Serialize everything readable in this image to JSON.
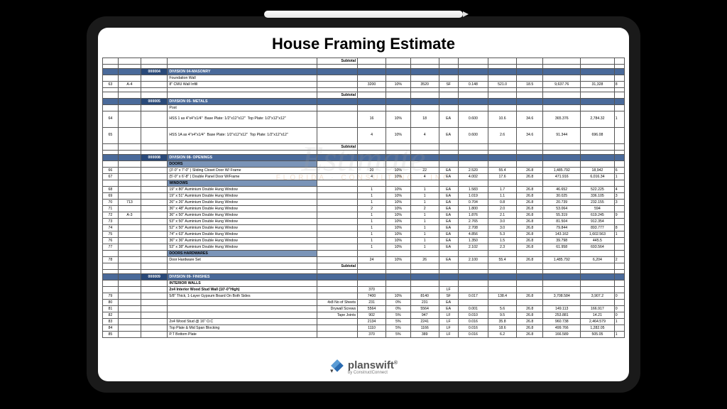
{
  "title": "House Framing Estimate",
  "watermark": {
    "main": "Estimate",
    "sub": "FLORIDA · CONSULTING · INC"
  },
  "logo": {
    "name": "planswift",
    "sup": "®",
    "by": "by ConstructConnect"
  },
  "colors": {
    "page_bg": "#000000",
    "tablet_bg": "#1a1a1a",
    "screen_bg": "#ffffff",
    "header_bg": "#4a6a9a",
    "header_code_bg": "#2a4a7a",
    "category_bg": "#7a94b8",
    "text": "#000000",
    "border": "#555555"
  },
  "columns": [
    "num",
    "ref",
    "code",
    "desc",
    "sub",
    "q",
    "p",
    "q2",
    "u",
    "r1",
    "r2",
    "r3",
    "r4",
    "r5",
    "r6"
  ],
  "rows": [
    {
      "t": "sub",
      "sub": "Subtotal"
    },
    {
      "t": "blank"
    },
    {
      "t": "hdr",
      "code": "000004",
      "desc": "DIVISION 04-MASONRY"
    },
    {
      "t": "row",
      "desc": "Foundation Wall"
    },
    {
      "t": "row",
      "num": "63",
      "ref": "A-4",
      "desc": "8\" CMU Wall Infill",
      "q": "3200",
      "p": "10%",
      "q2": "3520",
      "u": "SF",
      "r1": "0.148",
      "r2": "521.0",
      "r3": "18.5",
      "r4": "9,637.76",
      "r5": "31,328",
      "r6": "8"
    },
    {
      "t": "blank"
    },
    {
      "t": "sub",
      "sub": "Subtotal"
    },
    {
      "t": "hdr",
      "code": "000005",
      "desc": "DIVISION 05- METALS"
    },
    {
      "t": "row",
      "desc": "Post"
    },
    {
      "t": "row",
      "num": "64",
      "desc": "HSS 1  as 4\"x4\"x1/4\"  Base Plate: 1/2\"x12\"x12\"  Top Plate: 1/2\"x12\"x12\"",
      "q": "16",
      "p": "10%",
      "q2": "18",
      "u": "EA",
      "r1": "0.600",
      "r2": "10.6",
      "r3": "34.6",
      "r4": "365.376",
      "r5": "2,784.32",
      "r6": "1"
    },
    {
      "t": "row",
      "num": "65",
      "desc": "HSS 1A  as 4\"x4\"x1/4\"  Base Plate: 1/2\"x12\"x12\"  Top Plate: 1/2\"x12\"x12\"",
      "q": "4",
      "p": "10%",
      "q2": "4",
      "u": "EA",
      "r1": "0.600",
      "r2": "2.6",
      "r3": "34.6",
      "r4": "91.344",
      "r5": "696.08",
      "r6": ""
    },
    {
      "t": "sub",
      "sub": "Subtotal"
    },
    {
      "t": "blank"
    },
    {
      "t": "hdr",
      "code": "000008",
      "desc": "DIVISION 08- OPENINGS"
    },
    {
      "t": "cat",
      "desc": "DOORS"
    },
    {
      "t": "row",
      "num": "66",
      "desc": "(3'-0\" x 7'-0\" ) Sliding Closet Door W/ Frame",
      "q": "20",
      "p": "10%",
      "q2": "22",
      "u": "EA",
      "r1": "2.520",
      "r2": "55.4",
      "r3": "26.8",
      "r4": "1,485.792",
      "r5": "18,942",
      "r6": "6"
    },
    {
      "t": "row",
      "num": "67",
      "desc": "(5'-0\" x 6'-8\" ) Double Panel Door W/Frame",
      "q": "4",
      "p": "10%",
      "q2": "4",
      "u": "EA",
      "r1": "4.002",
      "r2": "17.6",
      "r3": "26.8",
      "r4": "471.916",
      "r5": "6,016.34",
      "r6": "1"
    },
    {
      "t": "cat",
      "desc": "WINDOWS"
    },
    {
      "t": "row",
      "num": "68",
      "desc": "19\" x 80\" Auminium Double Hung Window",
      "q": "1",
      "p": "10%",
      "q2": "1",
      "u": "EA",
      "r1": "1.583",
      "r2": "1.7",
      "r3": "26.8",
      "r4": "46.652",
      "r5": "522.225",
      "r6": "4"
    },
    {
      "t": "row",
      "num": "69",
      "desc": "19\" x 51\" Auminium Double Hung Window",
      "q": "1",
      "p": "10%",
      "q2": "1",
      "u": "EA",
      "r1": "1.019",
      "r2": "1.1",
      "r3": "26.8",
      "r4": "30.025",
      "r5": "336.105",
      "r6": "3"
    },
    {
      "t": "row",
      "num": "70",
      "ref": "713",
      "desc": "26\" x 26\" Auminium Double Hung Window",
      "q": "1",
      "p": "10%",
      "q2": "1",
      "u": "EA",
      "r1": "0.704",
      "r2": "0.8",
      "r3": "26.8",
      "r4": "20.739",
      "r5": "232.155",
      "r6": "3"
    },
    {
      "t": "row",
      "num": "71",
      "desc": "36\" x 48\" Auminium Double Hung Window",
      "q": "2",
      "p": "10%",
      "q2": "2",
      "u": "EA",
      "r1": "1.800",
      "r2": "2.0",
      "r3": "26.8",
      "r4": "53.064",
      "r5": "594",
      "r6": ""
    },
    {
      "t": "row",
      "num": "72",
      "ref": "A-3",
      "desc": "36\" x 50\" Auminium Double Hung Window",
      "q": "1",
      "p": "10%",
      "q2": "1",
      "u": "EA",
      "r1": "1.876",
      "r2": "2.1",
      "r3": "26.8",
      "r4": "55.319",
      "r5": "619.245",
      "r6": "9"
    },
    {
      "t": "row",
      "num": "73",
      "desc": "53\" x 50\" Auminium Double Hung Window",
      "q": "1",
      "p": "10%",
      "q2": "1",
      "u": "EA",
      "r1": "2.765",
      "r2": "3.0",
      "r3": "26.8",
      "r4": "81.504",
      "r5": "912.354",
      "r6": ""
    },
    {
      "t": "row",
      "num": "74",
      "desc": "52\" x 50\" Auminium Double Hung Window",
      "q": "1",
      "p": "10%",
      "q2": "1",
      "u": "EA",
      "r1": "2.708",
      "r2": "3.0",
      "r3": "26.8",
      "r4": "79.844",
      "r5": "893.777",
      "r6": "8"
    },
    {
      "t": "row",
      "num": "75",
      "desc": "74\" x 63\" Auminium Double Hung Window",
      "q": "1",
      "p": "10%",
      "q2": "1",
      "u": "EA",
      "r1": "4.856",
      "r2": "5.3",
      "r3": "26.8",
      "r4": "143.162",
      "r5": "1,602.563",
      "r6": "1"
    },
    {
      "t": "row",
      "num": "76",
      "desc": "36\" x 36\" Auminium Double Hung Window",
      "q": "1",
      "p": "10%",
      "q2": "1",
      "u": "EA",
      "r1": "1.350",
      "r2": "1.5",
      "r3": "26.8",
      "r4": "39.798",
      "r5": "445.5",
      "r6": ""
    },
    {
      "t": "row",
      "num": "77",
      "desc": "53\" x 38\" Auminium Double Hung Window",
      "q": "1",
      "p": "10%",
      "q2": "1",
      "u": "EA",
      "r1": "2.102",
      "r2": "2.3",
      "r3": "26.8",
      "r4": "61.958",
      "r5": "693.564",
      "r6": ""
    },
    {
      "t": "cat",
      "desc": "DOORS HARDWARES"
    },
    {
      "t": "row",
      "num": "78",
      "desc": "Door Hardware Set",
      "q": "24",
      "p": "10%",
      "q2": "26",
      "u": "EA",
      "r1": "2.100",
      "r2": "55.4",
      "r3": "26.8",
      "r4": "1,485.792",
      "r5": "6,204",
      "r6": "2"
    },
    {
      "t": "sub",
      "sub": "Subtotal"
    },
    {
      "t": "blank"
    },
    {
      "t": "hdr",
      "code": "000009",
      "desc": "DIVISION 09- FINISHES"
    },
    {
      "t": "row",
      "desc": "INTERIOR WALLS",
      "bold": true
    },
    {
      "t": "row",
      "desc": "2x4 Interior Wood Stud Wall  (10'-0\"High)",
      "q": "370",
      "u": "LF",
      "bold": true
    },
    {
      "t": "row",
      "num": "79",
      "desc": "5/8\" Thick, 1-Layer Gypsum Board On Both Sides",
      "q": "7400",
      "p": "10%",
      "q2": "8140",
      "u": "SF",
      "r1": "0.017",
      "r2": "138.4",
      "r3": "26.8",
      "r4": "3,708.584",
      "r5": "3,907.2",
      "r6": "0"
    },
    {
      "t": "row",
      "num": "80",
      "desc": "",
      "sub": "4x8 No of  Sheets",
      "q": "231",
      "p": "0%",
      "q2": "231",
      "u": "EA"
    },
    {
      "t": "row",
      "num": "81",
      "desc": "",
      "sub": "Drywall Screws",
      "q": "5564",
      "p": "0%",
      "q2": "5564",
      "u": "EA",
      "r1": "0.001",
      "r2": "5.6",
      "r3": "26.8",
      "r4": "149.113",
      "r5": "166.917",
      "r6": "0"
    },
    {
      "t": "row",
      "num": "82",
      "desc": "",
      "sub": "Tape Joints",
      "q": "902",
      "p": "5%",
      "q2": "947",
      "u": "LF",
      "r1": "0.010",
      "r2": "9.5",
      "r3": "26.8",
      "r4": "253.881",
      "r5": "14.21",
      "r6": "0"
    },
    {
      "t": "row",
      "num": "83",
      "desc": "2x4 Wood Stud @ 16\" O.C",
      "q": "2134",
      "p": "5%",
      "q2": "2241",
      "u": "LF",
      "r1": "0.016",
      "r2": "35.8",
      "r3": "26.8",
      "r4": "960.738",
      "r5": "2,464.579",
      "r6": "1"
    },
    {
      "t": "row",
      "num": "84",
      "desc": "Top Plate & Mid Span Blocking",
      "q": "1110",
      "p": "5%",
      "q2": "1166",
      "u": "LF",
      "r1": "0.016",
      "r2": "18.6",
      "r3": "26.8",
      "r4": "499.766",
      "r5": "1,282.05",
      "r6": ""
    },
    {
      "t": "row",
      "num": "85",
      "desc": "P.T Bottom Plate",
      "q": "370",
      "p": "5%",
      "q2": "389",
      "u": "LF",
      "r1": "0.016",
      "r2": "6.2",
      "r3": "26.8",
      "r4": "166.589",
      "r5": "505.05",
      "r6": "1"
    }
  ]
}
